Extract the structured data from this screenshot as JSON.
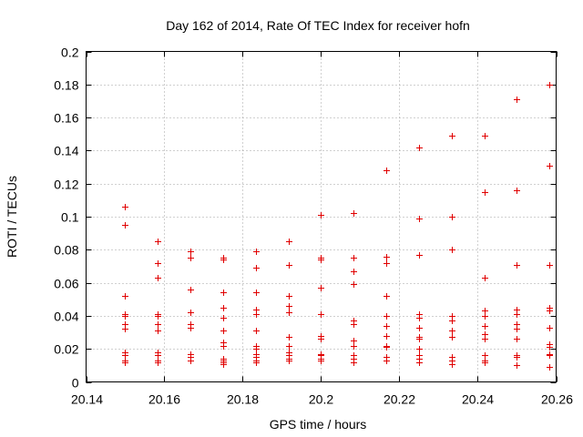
{
  "chart_data": {
    "type": "scatter",
    "title": "Day 162 of 2014, Rate Of TEC Index for receiver hofn",
    "xlabel": "GPS time / hours",
    "ylabel": "ROTI / TECUs",
    "xlim": [
      20.14,
      20.26
    ],
    "ylim": [
      0,
      0.2
    ],
    "xticks": [
      "20.14",
      "20.16",
      "20.18",
      "20.2",
      "20.22",
      "20.24",
      "20.26"
    ],
    "xtick_values": [
      20.14,
      20.16,
      20.18,
      20.2,
      20.22,
      20.24,
      20.26
    ],
    "yticks": [
      "0",
      "0.02",
      "0.04",
      "0.06",
      "0.08",
      "0.1",
      "0.12",
      "0.14",
      "0.16",
      "0.18",
      "0.2"
    ],
    "ytick_values": [
      0,
      0.02,
      0.04,
      0.06,
      0.08,
      0.1,
      0.12,
      0.14,
      0.16,
      0.18,
      0.2
    ],
    "grid": true,
    "marker": "+",
    "marker_color": "#e00000",
    "series": [
      {
        "name": "ROTI",
        "points": [
          [
            20.15,
            0.106
          ],
          [
            20.15,
            0.095
          ],
          [
            20.15,
            0.052
          ],
          [
            20.15,
            0.041
          ],
          [
            20.15,
            0.04
          ],
          [
            20.15,
            0.035
          ],
          [
            20.15,
            0.032
          ],
          [
            20.15,
            0.018
          ],
          [
            20.15,
            0.016
          ],
          [
            20.15,
            0.013
          ],
          [
            20.15,
            0.012
          ],
          [
            20.1583,
            0.085
          ],
          [
            20.1583,
            0.072
          ],
          [
            20.1583,
            0.063
          ],
          [
            20.1583,
            0.041
          ],
          [
            20.1583,
            0.04
          ],
          [
            20.1583,
            0.035
          ],
          [
            20.1583,
            0.031
          ],
          [
            20.1583,
            0.018
          ],
          [
            20.1583,
            0.016
          ],
          [
            20.1583,
            0.013
          ],
          [
            20.1583,
            0.012
          ],
          [
            20.1667,
            0.079
          ],
          [
            20.1667,
            0.075
          ],
          [
            20.1667,
            0.056
          ],
          [
            20.1667,
            0.042
          ],
          [
            20.1667,
            0.035
          ],
          [
            20.1667,
            0.033
          ],
          [
            20.1667,
            0.017
          ],
          [
            20.1667,
            0.015
          ],
          [
            20.1667,
            0.013
          ],
          [
            20.175,
            0.075
          ],
          [
            20.175,
            0.074
          ],
          [
            20.175,
            0.054
          ],
          [
            20.175,
            0.045
          ],
          [
            20.175,
            0.039
          ],
          [
            20.175,
            0.031
          ],
          [
            20.175,
            0.024
          ],
          [
            20.175,
            0.022
          ],
          [
            20.175,
            0.014
          ],
          [
            20.175,
            0.013
          ],
          [
            20.175,
            0.012
          ],
          [
            20.175,
            0.011
          ],
          [
            20.1833,
            0.079
          ],
          [
            20.1833,
            0.069
          ],
          [
            20.1833,
            0.054
          ],
          [
            20.1833,
            0.044
          ],
          [
            20.1833,
            0.041
          ],
          [
            20.1833,
            0.031
          ],
          [
            20.1833,
            0.022
          ],
          [
            20.1833,
            0.02
          ],
          [
            20.1833,
            0.017
          ],
          [
            20.1833,
            0.015
          ],
          [
            20.1833,
            0.013
          ],
          [
            20.1833,
            0.012
          ],
          [
            20.1917,
            0.085
          ],
          [
            20.1917,
            0.071
          ],
          [
            20.1917,
            0.052
          ],
          [
            20.1917,
            0.046
          ],
          [
            20.1917,
            0.042
          ],
          [
            20.1917,
            0.027
          ],
          [
            20.1917,
            0.022
          ],
          [
            20.1917,
            0.018
          ],
          [
            20.1917,
            0.016
          ],
          [
            20.1917,
            0.014
          ],
          [
            20.1917,
            0.013
          ],
          [
            20.2,
            0.101
          ],
          [
            20.2,
            0.075
          ],
          [
            20.2,
            0.074
          ],
          [
            20.2,
            0.057
          ],
          [
            20.2,
            0.041
          ],
          [
            20.2,
            0.028
          ],
          [
            20.2,
            0.026
          ],
          [
            20.2,
            0.017
          ],
          [
            20.2,
            0.016
          ],
          [
            20.2,
            0.014
          ],
          [
            20.2,
            0.013
          ],
          [
            20.2083,
            0.102
          ],
          [
            20.2083,
            0.075
          ],
          [
            20.2083,
            0.067
          ],
          [
            20.2083,
            0.059
          ],
          [
            20.2083,
            0.037
          ],
          [
            20.2083,
            0.035
          ],
          [
            20.2083,
            0.025
          ],
          [
            20.2083,
            0.022
          ],
          [
            20.2083,
            0.016
          ],
          [
            20.2083,
            0.014
          ],
          [
            20.2083,
            0.012
          ],
          [
            20.2167,
            0.128
          ],
          [
            20.2167,
            0.076
          ],
          [
            20.2167,
            0.072
          ],
          [
            20.2167,
            0.052
          ],
          [
            20.2167,
            0.04
          ],
          [
            20.2167,
            0.034
          ],
          [
            20.2167,
            0.028
          ],
          [
            20.2167,
            0.022
          ],
          [
            20.2167,
            0.021
          ],
          [
            20.2167,
            0.015
          ],
          [
            20.2167,
            0.013
          ],
          [
            20.225,
            0.142
          ],
          [
            20.225,
            0.099
          ],
          [
            20.225,
            0.077
          ],
          [
            20.225,
            0.041
          ],
          [
            20.225,
            0.039
          ],
          [
            20.225,
            0.033
          ],
          [
            20.225,
            0.027
          ],
          [
            20.225,
            0.026
          ],
          [
            20.225,
            0.02
          ],
          [
            20.225,
            0.016
          ],
          [
            20.225,
            0.014
          ],
          [
            20.225,
            0.012
          ],
          [
            20.2333,
            0.149
          ],
          [
            20.2333,
            0.1
          ],
          [
            20.2333,
            0.08
          ],
          [
            20.2333,
            0.04
          ],
          [
            20.2333,
            0.037
          ],
          [
            20.2333,
            0.031
          ],
          [
            20.2333,
            0.027
          ],
          [
            20.2333,
            0.015
          ],
          [
            20.2333,
            0.013
          ],
          [
            20.2333,
            0.011
          ],
          [
            20.2417,
            0.149
          ],
          [
            20.2417,
            0.115
          ],
          [
            20.2417,
            0.063
          ],
          [
            20.2417,
            0.043
          ],
          [
            20.2417,
            0.04
          ],
          [
            20.2417,
            0.034
          ],
          [
            20.2417,
            0.029
          ],
          [
            20.2417,
            0.026
          ],
          [
            20.2417,
            0.016
          ],
          [
            20.2417,
            0.013
          ],
          [
            20.2417,
            0.012
          ],
          [
            20.25,
            0.171
          ],
          [
            20.25,
            0.116
          ],
          [
            20.25,
            0.071
          ],
          [
            20.25,
            0.044
          ],
          [
            20.25,
            0.041
          ],
          [
            20.25,
            0.035
          ],
          [
            20.25,
            0.032
          ],
          [
            20.25,
            0.026
          ],
          [
            20.25,
            0.016
          ],
          [
            20.25,
            0.015
          ],
          [
            20.25,
            0.01
          ],
          [
            20.2583,
            0.18
          ],
          [
            20.2583,
            0.131
          ],
          [
            20.2583,
            0.071
          ],
          [
            20.2583,
            0.045
          ],
          [
            20.2583,
            0.043
          ],
          [
            20.2583,
            0.033
          ],
          [
            20.2583,
            0.023
          ],
          [
            20.2583,
            0.021
          ],
          [
            20.2583,
            0.017
          ],
          [
            20.2583,
            0.016
          ],
          [
            20.2583,
            0.009
          ]
        ]
      }
    ]
  }
}
